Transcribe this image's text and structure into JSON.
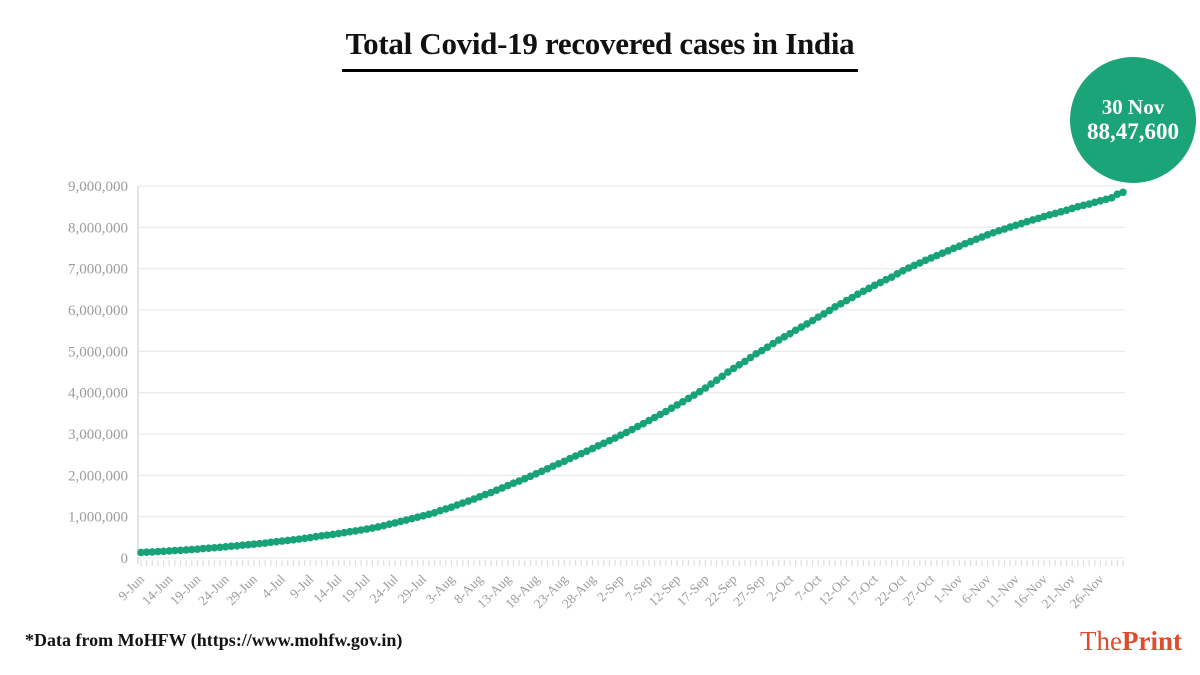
{
  "title": "Total Covid-19 recovered cases in India",
  "badge": {
    "date": "30 Nov",
    "value": "88,47,600",
    "color": "#1ba478"
  },
  "footer": {
    "source": "*Data from MoHFW (https://www.mohfw.gov.in)"
  },
  "brand": {
    "the": "The",
    "print": "Print",
    "color": "#e04b2b"
  },
  "chart_data": {
    "type": "line",
    "title": "Total Covid-19 recovered cases in India",
    "xlabel": "",
    "ylabel": "",
    "ylim": [
      0,
      9000000
    ],
    "grid": true,
    "marker_color": "#17a277",
    "grid_color": "#ececec",
    "axis_color": "#d6d6d6",
    "tick_color": "#dedede",
    "label_color": "#9c9c9c",
    "start_date": "9-Jun",
    "end_date": "30-Nov",
    "frequency": "daily",
    "y_tick_labels": [
      "0",
      "1,000,000",
      "2,000,000",
      "3,000,000",
      "4,000,000",
      "5,000,000",
      "6,000,000",
      "7,000,000",
      "8,000,000",
      "9,000,000"
    ],
    "x_tick_labels": [
      "9-Jun",
      "14-Jun",
      "19-Jun",
      "24-Jun",
      "29-Jun",
      "4-Jul",
      "9-Jul",
      "14-Jul",
      "19-Jul",
      "24-Jul",
      "29-Jul",
      "3-Aug",
      "8-Aug",
      "13-Aug",
      "18-Aug",
      "23-Aug",
      "28-Aug",
      "2-Sep",
      "7-Sep",
      "12-Sep",
      "17-Sep",
      "22-Sep",
      "27-Sep",
      "2-Oct",
      "7-Oct",
      "12-Oct",
      "17-Oct",
      "22-Oct",
      "27-Oct",
      "1-Nov",
      "6-Nov",
      "11-Nov",
      "16-Nov",
      "21-Nov",
      "26-Nov"
    ],
    "x_tick_every": 5,
    "values": [
      135206,
      141029,
      147195,
      154330,
      162379,
      169798,
      180013,
      186935,
      194325,
      204711,
      213831,
      227756,
      237196,
      248190,
      258685,
      271697,
      285637,
      295881,
      309713,
      321723,
      334822,
      347979,
      359860,
      379892,
      394227,
      409083,
      424433,
      439934,
      456831,
      476378,
      495516,
      515386,
      535731,
      553471,
      571460,
      592032,
      612815,
      635757,
      653751,
      677423,
      700087,
      724578,
      752393,
      782607,
      817209,
      849432,
      885577,
      917568,
      952743,
      988029,
      1020582,
      1057805,
      1094374,
      1145630,
      1186203,
      1230509,
      1282215,
      1328336,
      1378105,
      1427005,
      1480884,
      1535743,
      1583489,
      1639599,
      1695982,
      1751555,
      1808936,
      1862258,
      1919842,
      1977671,
      2037816,
      2096664,
      2158946,
      2222577,
      2280566,
      2338035,
      2404585,
      2467758,
      2523771,
      2583948,
      2648998,
      2713933,
      2774801,
      2839882,
      2901908,
      2970492,
      3037151,
      3107223,
      3180865,
      3250429,
      3323950,
      3398844,
      3471783,
      3542663,
      3624196,
      3702595,
      3780107,
      3859399,
      3942360,
      4025079,
      4112551,
      4208431,
      4303043,
      4396399,
      4497867,
      4587613,
      4674987,
      4756164,
      4849584,
      4941627,
      5016520,
      5101397,
      5187825,
      5273201,
      5352078,
      5427706,
      5509966,
      5586703,
      5662490,
      5744693,
      5827704,
      5906069,
      5988822,
      6077976,
      6149535,
      6227295,
      6301927,
      6383441,
      6453779,
      6524595,
      6597209,
      6663608,
      6733328,
      6795103,
      6874518,
      6948497,
      7016046,
      7078123,
      7137228,
      7201070,
      7259509,
      7315989,
      7373375,
      7432829,
      7491513,
      7544798,
      7603121,
      7656478,
      7711809,
      7765966,
      7819886,
      7868968,
      7917373,
      7959406,
      8005397,
      8049920,
      8090389,
      8135926,
      8178276,
      8216969,
      8260574,
      8302069,
      8335109,
      8374497,
      8415954,
      8456110,
      8498779,
      8533074,
      8562647,
      8604955,
      8642771,
      8677161,
      8714094,
      8802267,
      8847600
    ]
  }
}
